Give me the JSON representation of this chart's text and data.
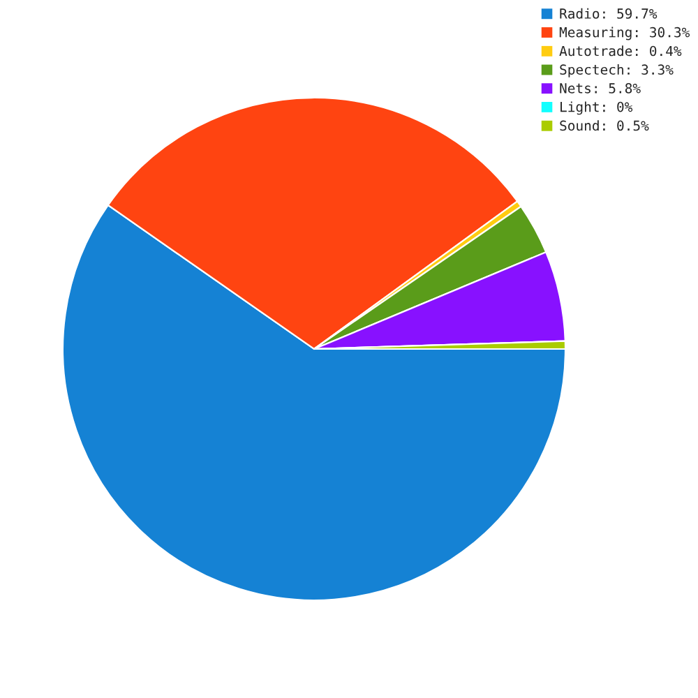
{
  "chart_data": {
    "type": "pie",
    "categories": [
      "Radio: 59.7%",
      "Measuring: 30.3%",
      "Autotrade: 0.4%",
      "Spectech: 3.3%",
      "Nets: 5.8%",
      "Light: 0%",
      "Sound: 0.5%"
    ],
    "values": [
      59.7,
      30.3,
      0.4,
      3.3,
      5.8,
      0,
      0.5
    ],
    "colors": [
      "#1582d4",
      "#ff4411",
      "#ffcc11",
      "#5a9c1a",
      "#8811ff",
      "#11ffff",
      "#aacc00"
    ],
    "legend": "top right"
  }
}
